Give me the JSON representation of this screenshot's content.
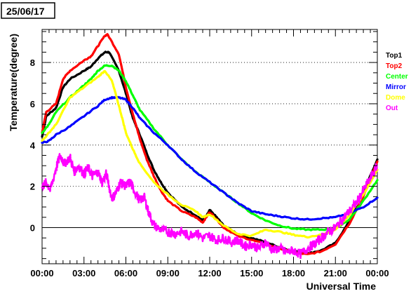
{
  "chart_data": {
    "type": "scatter",
    "date_label": "25/06/17",
    "xlabel": "Universal Time",
    "ylabel": "Temperature(degree)",
    "xlim": [
      0,
      24
    ],
    "ylim": [
      -1.75,
      9.6
    ],
    "x_tick_values": [
      0,
      3,
      6,
      9,
      12,
      15,
      18,
      21,
      24
    ],
    "x_tick_labels": [
      "00:00",
      "03:00",
      "06:00",
      "09:00",
      "12:00",
      "15:00",
      "18:00",
      "21:00",
      "00:00"
    ],
    "y_tick_values": [
      0,
      2,
      4,
      6,
      8
    ],
    "y_tick_labels": [
      "0",
      "2",
      "4",
      "6",
      "8"
    ],
    "grid": "horizontal dotted",
    "legend_position": "right",
    "series": [
      {
        "name": "Top1",
        "color": "#000000",
        "x": [
          0,
          0.3,
          1,
          1.5,
          2,
          3,
          3.5,
          4,
          4.5,
          4.8,
          5.5,
          6,
          6.5,
          7,
          7.5,
          8,
          8.5,
          9,
          10,
          11,
          11.5,
          11.8,
          12,
          12.5,
          13,
          14,
          15,
          16,
          17,
          18,
          19,
          20,
          21,
          22,
          23,
          24
        ],
        "y": [
          4.4,
          5.4,
          5.8,
          6.8,
          7.2,
          7.6,
          7.8,
          8.2,
          8.5,
          8.5,
          7.6,
          6.5,
          5.3,
          4.5,
          3.6,
          2.8,
          2.2,
          1.7,
          1.0,
          0.6,
          0.35,
          0.6,
          0.85,
          0.5,
          0.1,
          -0.3,
          -0.5,
          -0.7,
          -0.95,
          -1.15,
          -1.25,
          -1.1,
          -0.75,
          0.3,
          1.7,
          3.3
        ]
      },
      {
        "name": "Top2",
        "color": "#ff0000",
        "x": [
          0,
          0.3,
          1,
          1.5,
          2,
          3,
          3.5,
          4,
          4.5,
          4.7,
          5.5,
          6,
          6.5,
          7,
          7.5,
          8,
          8.5,
          9,
          10,
          11,
          11.5,
          11.8,
          12,
          12.5,
          13,
          14,
          15,
          16,
          17,
          18,
          19,
          20,
          21,
          22,
          23,
          24
        ],
        "y": [
          4.6,
          5.6,
          6.0,
          7.2,
          7.6,
          8.1,
          8.3,
          8.8,
          9.3,
          9.35,
          8.4,
          6.8,
          5.5,
          4.3,
          3.3,
          2.5,
          1.8,
          1.3,
          0.8,
          0.5,
          0.25,
          0.55,
          0.75,
          0.4,
          0.0,
          -0.4,
          -0.6,
          -0.8,
          -1.0,
          -1.2,
          -1.3,
          -1.15,
          -0.8,
          0.2,
          1.5,
          3.2
        ]
      },
      {
        "name": "Center",
        "color": "#00ff00",
        "x": [
          0,
          0.5,
          1,
          2,
          3,
          3.5,
          4,
          4.5,
          5,
          5.5,
          6,
          6.5,
          7,
          8,
          9,
          10,
          11,
          12,
          13,
          14,
          15,
          16,
          17,
          18,
          19,
          20,
          21,
          22,
          23,
          24
        ],
        "y": [
          4.6,
          5.0,
          5.6,
          6.3,
          6.9,
          7.2,
          7.6,
          7.85,
          7.85,
          7.6,
          7.1,
          6.4,
          5.7,
          4.8,
          4.0,
          3.3,
          2.7,
          2.2,
          1.7,
          1.2,
          0.7,
          0.35,
          0.1,
          -0.05,
          -0.1,
          -0.1,
          -0.05,
          0.4,
          1.3,
          2.3
        ]
      },
      {
        "name": "Mirror",
        "color": "#0000ff",
        "x": [
          0,
          0.5,
          1,
          2,
          3,
          4,
          4.5,
          5,
          5.5,
          6,
          6.5,
          7,
          8,
          9,
          10,
          11,
          12,
          13,
          14,
          15,
          16,
          17,
          18,
          19,
          20,
          21,
          22,
          23,
          24
        ],
        "y": [
          4.1,
          4.2,
          4.5,
          4.9,
          5.4,
          5.9,
          6.2,
          6.3,
          6.3,
          6.2,
          5.8,
          5.3,
          4.6,
          4.0,
          3.3,
          2.7,
          2.2,
          1.7,
          1.2,
          0.8,
          0.65,
          0.55,
          0.45,
          0.4,
          0.45,
          0.5,
          0.7,
          1.0,
          1.45
        ]
      },
      {
        "name": "Dome",
        "color": "#ffff00",
        "x": [
          0,
          0.5,
          1,
          2,
          3,
          4,
          4.5,
          5,
          5.3,
          5.7,
          6,
          6.5,
          7,
          8,
          9,
          10,
          11,
          11.5,
          12,
          13,
          14,
          15,
          16,
          17,
          18,
          19,
          20,
          21,
          22,
          23,
          24
        ],
        "y": [
          4.2,
          4.6,
          5.0,
          6.3,
          6.8,
          7.3,
          7.6,
          7.1,
          6.4,
          5.4,
          4.6,
          3.8,
          3.1,
          2.2,
          1.6,
          1.1,
          0.8,
          0.5,
          0.65,
          0.1,
          -0.3,
          -0.4,
          -0.1,
          -0.2,
          -0.35,
          -0.45,
          -0.35,
          -0.1,
          0.6,
          1.6,
          2.8
        ]
      },
      {
        "name": "Out",
        "color": "#ff00ff",
        "x": [
          0,
          0.3,
          0.6,
          1,
          1.3,
          1.6,
          2,
          2.3,
          2.6,
          3,
          3.3,
          3.6,
          4,
          4.3,
          4.6,
          5,
          5.3,
          5.6,
          6,
          6.3,
          6.6,
          7,
          7.3,
          7.6,
          8,
          8.5,
          9,
          9.5,
          10,
          10.5,
          11,
          11.5,
          12,
          12.5,
          13,
          13.5,
          14,
          14.5,
          15,
          15.5,
          16,
          16.5,
          17,
          17.5,
          18,
          18.5,
          19,
          19.5,
          20,
          20.5,
          21,
          21.5,
          22,
          22.5,
          23,
          23.5,
          24
        ],
        "y": [
          2.0,
          2.2,
          1.8,
          2.9,
          3.5,
          3.1,
          3.4,
          2.7,
          3.0,
          2.6,
          2.9,
          2.5,
          2.7,
          2.2,
          2.6,
          1.4,
          1.7,
          2.2,
          2.0,
          2.2,
          1.8,
          1.3,
          1.5,
          0.8,
          0.1,
          -0.1,
          -0.2,
          -0.3,
          -0.2,
          -0.4,
          -0.2,
          -0.5,
          -0.4,
          -0.6,
          -0.5,
          -0.7,
          -0.6,
          -0.9,
          -0.8,
          -1.0,
          -0.7,
          -1.1,
          -1.0,
          -1.2,
          -1.1,
          -1.3,
          -1.0,
          -0.8,
          -0.5,
          -0.2,
          0.0,
          0.4,
          0.8,
          1.2,
          1.8,
          2.4,
          3.0
        ]
      }
    ]
  }
}
